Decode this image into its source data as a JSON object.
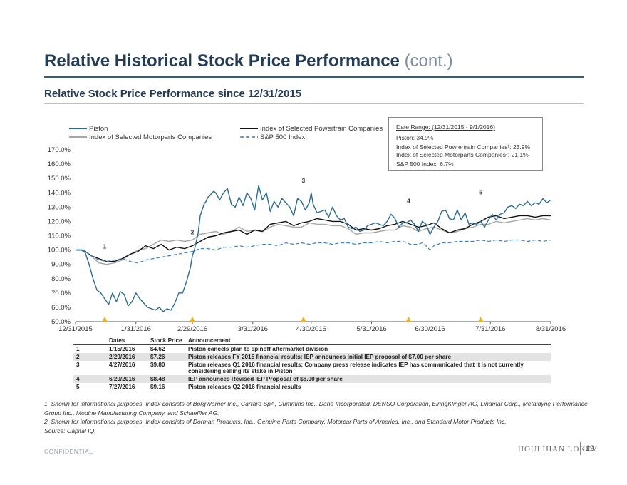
{
  "header": {
    "title": "Relative Historical Stock Price Performance",
    "title_cont": "(cont.)",
    "subtitle": "Relative Stock Price Performance since 12/31/2015"
  },
  "chart_data": {
    "type": "line",
    "title": "Relative Stock Price Performance since 12/31/2015",
    "xlabel": "",
    "ylabel": "",
    "ylim": [
      50,
      170
    ],
    "yticks": [
      "50.0%",
      "60.0%",
      "70.0%",
      "80.0%",
      "90.0%",
      "100.0%",
      "110.0%",
      "120.0%",
      "130.0%",
      "140.0%",
      "150.0%",
      "160.0%",
      "170.0%"
    ],
    "xlim": [
      0,
      244
    ],
    "xtick_labels": [
      "12/31/2015",
      "1/31/2016",
      "2/29/2016",
      "3/31/2016",
      "4/30/2016",
      "5/31/2016",
      "6/30/2016",
      "7/31/2016",
      "8/31/2016"
    ],
    "xtick_days": [
      0,
      31,
      60,
      91,
      121,
      152,
      182,
      213,
      244
    ],
    "legend": [
      {
        "name": "Piston",
        "color": "#2c6a8f",
        "style": "solid"
      },
      {
        "name": "Index of Selected Powertrain Companies",
        "color": "#111111",
        "style": "solid"
      },
      {
        "name": "Index of Selected Motorparts Companies",
        "color": "#a6a6a6",
        "style": "solid"
      },
      {
        "name": "S&P 500 Index",
        "color": "#3a7fc1",
        "style": "dashed"
      }
    ],
    "series": [
      {
        "name": "Piston",
        "color": "#2c6a8f",
        "width": 1.4,
        "dash": "",
        "x": [
          0,
          3,
          5,
          7,
          9,
          11,
          13,
          15,
          17,
          19,
          21,
          23,
          25,
          27,
          29,
          31,
          33,
          35,
          37,
          39,
          41,
          43,
          45,
          47,
          49,
          51,
          53,
          55,
          57,
          59,
          60,
          61,
          62,
          63,
          64,
          65,
          66,
          67,
          68,
          69,
          70,
          71,
          72,
          74,
          76,
          78,
          80,
          82,
          84,
          86,
          88,
          90,
          92,
          94,
          96,
          98,
          100,
          102,
          104,
          106,
          108,
          110,
          112,
          114,
          116,
          118,
          120,
          121,
          122,
          124,
          126,
          128,
          130,
          132,
          134,
          136,
          138,
          140,
          142,
          144,
          146,
          148,
          150,
          152,
          154,
          156,
          158,
          160,
          162,
          164,
          166,
          168,
          170,
          172,
          174,
          176,
          178,
          180,
          182,
          184,
          186,
          188,
          190,
          192,
          194,
          196,
          198,
          200,
          202,
          204,
          206,
          208,
          210,
          212,
          214,
          216,
          218,
          220,
          222,
          224,
          226,
          228,
          230,
          232,
          234,
          236,
          238,
          240,
          242,
          244
        ],
        "y": [
          100,
          100,
          98,
          90,
          80,
          72,
          70,
          66,
          62,
          70,
          64,
          71,
          69,
          61,
          64,
          70,
          66,
          63,
          60,
          59,
          58,
          60,
          57,
          59,
          58,
          63,
          70,
          70,
          78,
          88,
          96,
          100,
          106,
          112,
          124,
          128,
          132,
          134,
          137,
          138,
          140,
          141,
          140,
          135,
          140,
          143,
          132,
          130,
          137,
          131,
          140,
          136,
          128,
          145,
          135,
          140,
          127,
          134,
          130,
          136,
          133,
          130,
          124,
          136,
          134,
          128,
          133,
          140,
          132,
          126,
          127,
          128,
          123,
          130,
          124,
          121,
          122,
          116,
          115,
          116,
          113,
          114,
          117,
          118,
          119,
          118,
          117,
          120,
          125,
          122,
          116,
          119,
          119,
          121,
          118,
          113,
          120,
          118,
          111,
          116,
          120,
          127,
          128,
          122,
          121,
          128,
          121,
          126,
          118,
          119,
          118,
          120,
          116,
          121,
          125,
          121,
          125,
          126,
          130,
          131,
          129,
          132,
          131,
          134,
          131,
          133,
          132,
          136,
          133,
          135
        ]
      },
      {
        "name": "Index of Selected Powertrain Companies",
        "color": "#111111",
        "width": 1.4,
        "dash": "",
        "x": [
          0,
          4,
          8,
          12,
          16,
          20,
          24,
          28,
          32,
          36,
          40,
          44,
          48,
          52,
          56,
          60,
          64,
          68,
          72,
          76,
          80,
          84,
          88,
          92,
          96,
          100,
          104,
          108,
          112,
          116,
          120,
          124,
          128,
          132,
          136,
          140,
          144,
          148,
          152,
          156,
          160,
          164,
          168,
          172,
          176,
          180,
          184,
          188,
          192,
          196,
          200,
          204,
          208,
          212,
          216,
          220,
          224,
          228,
          232,
          236,
          240,
          244
        ],
        "y": [
          100,
          100,
          96,
          94,
          92,
          92,
          94,
          97,
          99,
          103,
          101,
          104,
          100,
          102,
          101,
          103,
          106,
          109,
          110,
          112,
          113,
          114,
          111,
          114,
          113,
          118,
          119,
          120,
          117,
          119,
          120,
          122,
          121,
          120,
          120,
          118,
          114,
          115,
          114,
          115,
          117,
          118,
          120,
          118,
          116,
          117,
          119,
          115,
          112,
          114,
          115,
          118,
          120,
          123,
          124,
          122,
          123,
          124,
          124,
          123,
          124,
          124
        ]
      },
      {
        "name": "Index of Selected Motorparts Companies",
        "color": "#a6a6a6",
        "width": 1.4,
        "dash": "",
        "x": [
          0,
          4,
          8,
          12,
          16,
          20,
          24,
          28,
          32,
          36,
          40,
          44,
          48,
          52,
          56,
          60,
          64,
          68,
          72,
          76,
          80,
          84,
          88,
          92,
          96,
          100,
          104,
          108,
          112,
          116,
          120,
          124,
          128,
          132,
          136,
          140,
          144,
          148,
          152,
          156,
          160,
          164,
          168,
          172,
          176,
          180,
          184,
          188,
          192,
          196,
          200,
          204,
          208,
          212,
          216,
          220,
          224,
          228,
          232,
          236,
          240,
          244
        ],
        "y": [
          100,
          100,
          96,
          91,
          90,
          91,
          93,
          97,
          100,
          101,
          104,
          107,
          106,
          107,
          106,
          107,
          111,
          112,
          113,
          111,
          113,
          116,
          113,
          114,
          113,
          116,
          118,
          117,
          116,
          116,
          119,
          118,
          118,
          117,
          117,
          115,
          111,
          112,
          112,
          113,
          114,
          114,
          117,
          116,
          113,
          115,
          116,
          114,
          112,
          113,
          115,
          116,
          118,
          118,
          120,
          119,
          120,
          121,
          122,
          121,
          122,
          121
        ]
      },
      {
        "name": "S&P 500 Index",
        "color": "#3a7fc1",
        "width": 1.2,
        "dash": "5,3",
        "x": [
          0,
          4,
          8,
          12,
          16,
          20,
          24,
          28,
          32,
          36,
          40,
          44,
          48,
          52,
          56,
          60,
          64,
          68,
          72,
          76,
          80,
          84,
          88,
          92,
          96,
          100,
          104,
          108,
          112,
          116,
          120,
          124,
          128,
          132,
          136,
          140,
          144,
          148,
          152,
          156,
          160,
          164,
          168,
          172,
          176,
          178,
          180,
          182,
          184,
          188,
          192,
          196,
          200,
          204,
          208,
          212,
          216,
          220,
          224,
          228,
          232,
          236,
          240,
          244
        ],
        "y": [
          100,
          100,
          96,
          93,
          92,
          93,
          94,
          92,
          91,
          93,
          94,
          95,
          96,
          97,
          98,
          99,
          101,
          101,
          100,
          102,
          102,
          103,
          102,
          103,
          104,
          104,
          103,
          105,
          104,
          105,
          104,
          105,
          105,
          104,
          105,
          105,
          104,
          105,
          105,
          106,
          105,
          106,
          106,
          104,
          104,
          105,
          103,
          100,
          103,
          105,
          105,
          106,
          106,
          106,
          107,
          106,
          107,
          106,
          107,
          107,
          106,
          107,
          106,
          107
        ]
      }
    ],
    "event_markers": [
      {
        "label": "1",
        "x": 15,
        "y": 100
      },
      {
        "label": "2",
        "x": 60,
        "y": 110
      },
      {
        "label": "3",
        "x": 117,
        "y": 146
      },
      {
        "label": "4",
        "x": 171,
        "y": 132
      },
      {
        "label": "5",
        "x": 208,
        "y": 138
      }
    ]
  },
  "stats_box": {
    "date_range": "Date Range: (12/31/2015 - 9/1/2016)",
    "lines": [
      "Piston: 34.9%",
      "Index of Selected Pow ertrain Companies¹: 23.9%",
      "Index of Selected Motorparts Companies²: 21.1%",
      "S&P 500 Index: 6.7%"
    ]
  },
  "events_table": {
    "headers": [
      "",
      "Dates",
      "Stock Price",
      "Announcement"
    ],
    "rows": [
      {
        "num": "1",
        "date": "1/15/2016",
        "price": "$4.62",
        "text": "Piston cancels plan to spinoff aftermarket division"
      },
      {
        "num": "2",
        "date": "2/29/2016",
        "price": "$7.26",
        "text": "Piston releases FY 2015 financial results; IEP announces initial IEP proposal of $7.00 per share"
      },
      {
        "num": "3",
        "date": "4/27/2016",
        "price": "$9.80",
        "text": "Piston releases Q1 2016 financial results; Company press release indicates IEP has communicated that it is not currently considering selling its stake in Piston"
      },
      {
        "num": "4",
        "date": "6/20/2016",
        "price": "$8.48",
        "text": "IEP announces Revised IEP Proposal of $8.00 per share"
      },
      {
        "num": "5",
        "date": "7/27/2016",
        "price": "$9.16",
        "text": "Piston releases Q2 2016 financial results"
      }
    ]
  },
  "footnotes": [
    "1. Shown for informational purposes. Index consists of BorgWarner Inc., Carraro SpA, Cummins Inc., Dana Incorporated, DENSO Corporation, ElringKlinger AG, Linamar Corp., Metaldyne Performance Group Inc., Modine Manufacturing Company, and Schaeffler AG.",
    "2. Shown for informational purposes. Index consists of Dorman Products, Inc., Genuine Parts Company, Motorcar Parts of America, Inc., and Standard Motor Products Inc.",
    "Source: Capital IQ."
  ],
  "footer": {
    "confidential": "CONFIDENTIAL",
    "brand": "HOULIHAN LOKEY",
    "page_number": "19"
  },
  "colors": {
    "title": "#243b55",
    "rule": "#2e5f85",
    "marker": "#f0b323"
  }
}
